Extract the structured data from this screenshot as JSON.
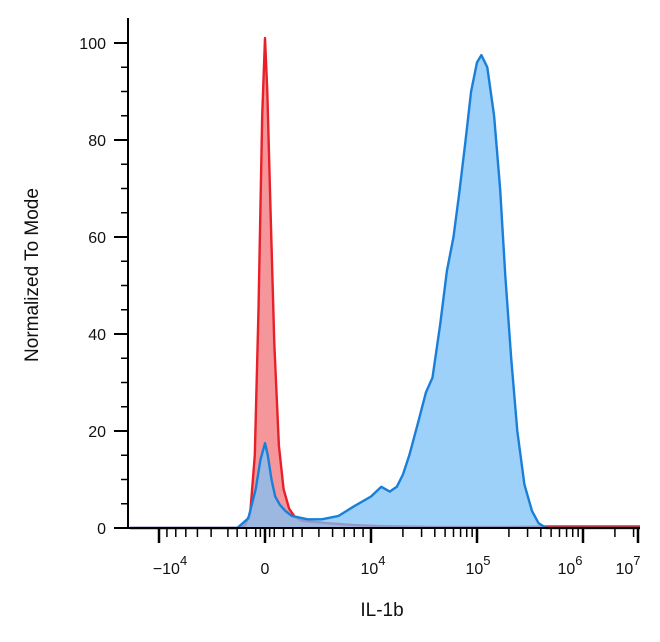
{
  "chart_data": {
    "type": "area",
    "title": "",
    "xlabel": "IL-1b",
    "ylabel": "Normalized To Mode",
    "x_scale": "biexponential",
    "ylim": [
      0,
      105
    ],
    "grid": false,
    "y_ticks": [
      "0",
      "20",
      "40",
      "60",
      "80",
      "100"
    ],
    "x_tick_labels": [
      {
        "base": "−10",
        "exp": "4"
      },
      {
        "base": "0",
        "exp": ""
      },
      {
        "base": "10",
        "exp": "4"
      },
      {
        "base": "10",
        "exp": "5"
      },
      {
        "base": "10",
        "exp": "6"
      },
      {
        "base": "10",
        "exp": "7"
      }
    ],
    "series": [
      {
        "color": "#e8202a",
        "fill": "#f48c8f",
        "points": [
          [
            -100000,
            0
          ],
          [
            -3000,
            0
          ],
          [
            -2200,
            0.5
          ],
          [
            -1600,
            3
          ],
          [
            -1100,
            15
          ],
          [
            -700,
            45
          ],
          [
            -300,
            85
          ],
          [
            0,
            101
          ],
          [
            250,
            90
          ],
          [
            600,
            65
          ],
          [
            1000,
            38
          ],
          [
            1500,
            17
          ],
          [
            2000,
            8
          ],
          [
            2600,
            4
          ],
          [
            3200,
            2.3
          ],
          [
            4000,
            1.5
          ],
          [
            5500,
            1
          ],
          [
            8000,
            0.6
          ],
          [
            12000,
            0.4
          ],
          [
            20000,
            0.3
          ],
          [
            40000,
            0.2
          ],
          [
            80000,
            0.2
          ],
          [
            200000,
            0.2
          ],
          [
            500000,
            0.3
          ],
          [
            1000000,
            0.3
          ],
          [
            10000000,
            0.3
          ]
        ]
      },
      {
        "color": "#1a7fd9",
        "fill": "#7ec2f7",
        "points": [
          [
            -100000,
            0
          ],
          [
            -3000,
            0
          ],
          [
            -1800,
            2
          ],
          [
            -1000,
            8
          ],
          [
            -500,
            14
          ],
          [
            0,
            17.5
          ],
          [
            300,
            15
          ],
          [
            700,
            10
          ],
          [
            1100,
            6.5
          ],
          [
            1600,
            4.8
          ],
          [
            2200,
            3.5
          ],
          [
            2900,
            2.5
          ],
          [
            3600,
            2.2
          ],
          [
            4300,
            1.8
          ],
          [
            5200,
            1.8
          ],
          [
            6500,
            2.5
          ],
          [
            8000,
            4.5
          ],
          [
            10000,
            6.5
          ],
          [
            12500,
            8.5
          ],
          [
            15000,
            7.5
          ],
          [
            17500,
            8.5
          ],
          [
            20000,
            11
          ],
          [
            23000,
            15
          ],
          [
            28000,
            22
          ],
          [
            33000,
            28
          ],
          [
            38000,
            31
          ],
          [
            45000,
            42
          ],
          [
            52000,
            53
          ],
          [
            60000,
            60
          ],
          [
            68000,
            69
          ],
          [
            78000,
            80
          ],
          [
            88000,
            90
          ],
          [
            100000,
            96
          ],
          [
            110000,
            97.5
          ],
          [
            125000,
            95
          ],
          [
            145000,
            85
          ],
          [
            165000,
            70
          ],
          [
            185000,
            52
          ],
          [
            210000,
            35
          ],
          [
            240000,
            20
          ],
          [
            280000,
            9
          ],
          [
            330000,
            3.5
          ],
          [
            380000,
            1
          ],
          [
            450000,
            0
          ],
          [
            10000000,
            0
          ]
        ]
      }
    ]
  }
}
